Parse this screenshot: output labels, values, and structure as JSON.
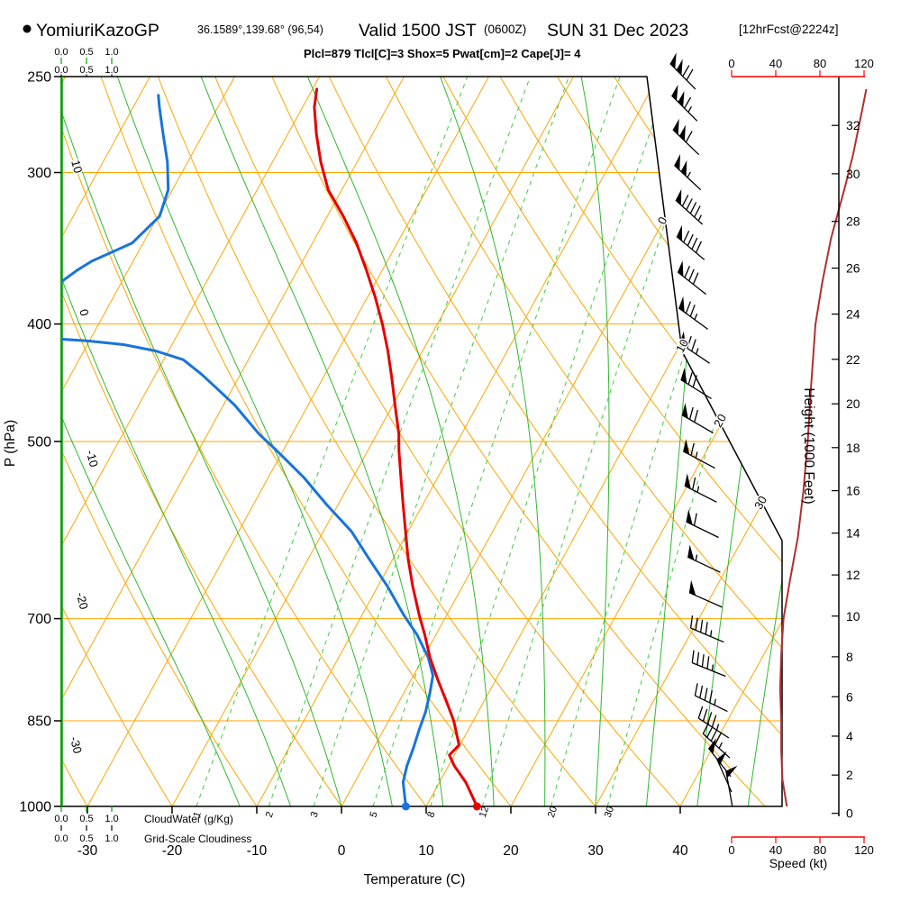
{
  "header": {
    "station_marker": "●",
    "station": "YomiuriKazoGP",
    "coords": "36.1589°,139.68° (96,54)",
    "valid_time": "Valid 1500 JST",
    "valid_zulu": "(0600Z)",
    "valid_date": "SUN 31 Dec 2023",
    "forecast_tag": "[12hrFcst@2224z]",
    "params_line": "Plcl=879 Tlcl[C]=3 Shox=5 Pwat[cm]=2 Cape[J]= 4"
  },
  "axes": {
    "pressure_label": "P (hPa)",
    "pressure_ticks": [
      250,
      300,
      400,
      500,
      700,
      850,
      1000
    ],
    "pressure_gridlines": [
      300,
      400,
      500,
      700,
      850
    ],
    "temperature_label": "Temperature (C)",
    "temperature_ticks": [
      -30,
      -20,
      -10,
      0,
      10,
      20,
      30,
      40
    ],
    "height_label": "Height (1000 Feet)",
    "height_ticks": [
      0,
      2,
      4,
      6,
      8,
      10,
      12,
      14,
      16,
      18,
      20,
      22,
      24,
      26,
      28,
      30,
      32
    ],
    "speed_label": "Speed (kt)",
    "speed_ticks": [
      0,
      40,
      80,
      120
    ],
    "cloud_scale_ticks": [
      "0.0",
      "0.5",
      "1.0"
    ],
    "cloudwater_label": "CloudWater (g/Kg)",
    "cloudiness_label": "Grid-Scale Cloudiness",
    "mixing_ratio_labels": [
      1,
      2,
      3,
      5,
      8,
      12,
      20,
      30
    ],
    "isotherm_inline_labels": [
      0,
      10,
      20,
      30
    ],
    "adiabat_inline_labels": [
      10,
      0,
      -10,
      -20,
      -30
    ]
  },
  "colors": {
    "orange_grid": "#FFA500",
    "moist_green": "#2EB82E",
    "mixing_green": "#3FCC3F",
    "cloudwater_green": "#00A600",
    "temperature_red": "#E60000",
    "dewpoint_blue": "#1874DC",
    "windspeed_dark_red": "#B03030",
    "speed_axis_red": "#FF0000",
    "params_magenta": "#C8006E",
    "fcst_blue": "#0000CD",
    "black": "#000000"
  },
  "chart_data": {
    "type": "line",
    "subtype": "skew-t log-p sounding",
    "pressure_range_hpa": [
      1000,
      250
    ],
    "temperature_range_c": [
      -30,
      40
    ],
    "temperature_profile_p_c": [
      [
        1000,
        16.0
      ],
      [
        955,
        13.1
      ],
      [
        926,
        10.7
      ],
      [
        907,
        9.4
      ],
      [
        890,
        9.9
      ],
      [
        850,
        7.7
      ],
      [
        821,
        5.7
      ],
      [
        787,
        3.2
      ],
      [
        754,
        0.8
      ],
      [
        722,
        -1.3
      ],
      [
        696,
        -3.2
      ],
      [
        658,
        -5.9
      ],
      [
        625,
        -8.2
      ],
      [
        593,
        -10.3
      ],
      [
        564,
        -12.3
      ],
      [
        536,
        -14.3
      ],
      [
        509,
        -16.3
      ],
      [
        493,
        -17.4
      ],
      [
        467,
        -19.7
      ],
      [
        443,
        -21.9
      ],
      [
        421,
        -24.1
      ],
      [
        400,
        -26.5
      ],
      [
        380,
        -29.1
      ],
      [
        361,
        -31.9
      ],
      [
        343,
        -34.8
      ],
      [
        326,
        -38.1
      ],
      [
        310,
        -41.6
      ],
      [
        294,
        -44.3
      ],
      [
        279,
        -46.6
      ],
      [
        265,
        -48.6
      ],
      [
        256,
        -49.5
      ]
    ],
    "dewpoint_profile_p_c": [
      [
        1000,
        7.6
      ],
      [
        955,
        5.7
      ],
      [
        926,
        5.1
      ],
      [
        895,
        4.7
      ],
      [
        865,
        4.2
      ],
      [
        836,
        3.8
      ],
      [
        807,
        3.1
      ],
      [
        780,
        2.3
      ],
      [
        754,
        0.6
      ],
      [
        722,
        -2.2
      ],
      [
        696,
        -5.0
      ],
      [
        658,
        -8.9
      ],
      [
        625,
        -12.8
      ],
      [
        593,
        -16.7
      ],
      [
        564,
        -21.3
      ],
      [
        536,
        -25.7
      ],
      [
        509,
        -30.7
      ],
      [
        493,
        -33.9
      ],
      [
        467,
        -38.6
      ],
      [
        451,
        -42.1
      ],
      [
        440,
        -44.6
      ],
      [
        428,
        -47.7
      ],
      [
        421,
        -51.5
      ],
      [
        416,
        -55.7
      ],
      [
        413,
        -60.3
      ],
      [
        411,
        -65.0
      ],
      [
        405,
        -70.0
      ],
      [
        395,
        -73.0
      ],
      [
        385,
        -73.0
      ],
      [
        375,
        -70.0
      ],
      [
        371,
        -67.4
      ],
      [
        361,
        -66.0
      ],
      [
        355,
        -64.9
      ],
      [
        343,
        -61.3
      ],
      [
        326,
        -59.8
      ],
      [
        310,
        -60.5
      ],
      [
        294,
        -62.4
      ],
      [
        279,
        -64.7
      ],
      [
        265,
        -66.9
      ],
      [
        259,
        -67.8
      ]
    ],
    "wind_speed_profile_p_kt": [
      [
        1000,
        50
      ],
      [
        950,
        46
      ],
      [
        900,
        45
      ],
      [
        850,
        45
      ],
      [
        800,
        44
      ],
      [
        750,
        45
      ],
      [
        700,
        47
      ],
      [
        650,
        53
      ],
      [
        600,
        60
      ],
      [
        550,
        65
      ],
      [
        500,
        69
      ],
      [
        450,
        72
      ],
      [
        400,
        76
      ],
      [
        370,
        82
      ],
      [
        340,
        90
      ],
      [
        310,
        102
      ],
      [
        290,
        110
      ],
      [
        270,
        117
      ],
      [
        256,
        122
      ]
    ],
    "wind_barbs_p_dir_kt": [
      [
        256,
        315,
        120
      ],
      [
        272,
        315,
        115
      ],
      [
        290,
        314,
        111
      ],
      [
        310,
        313,
        103
      ],
      [
        331,
        312,
        95
      ],
      [
        354,
        310,
        88
      ],
      [
        378,
        308,
        81
      ],
      [
        404,
        306,
        76
      ],
      [
        431,
        304,
        73
      ],
      [
        461,
        302,
        71
      ],
      [
        492,
        300,
        69
      ],
      [
        526,
        298,
        66
      ],
      [
        561,
        297,
        63
      ],
      [
        600,
        296,
        60
      ],
      [
        641,
        295,
        56
      ],
      [
        685,
        294,
        48
      ],
      [
        732,
        293,
        45
      ],
      [
        781,
        292,
        45
      ],
      [
        835,
        296,
        45
      ],
      [
        878,
        303,
        46
      ],
      [
        912,
        312,
        47
      ],
      [
        945,
        322,
        48
      ],
      [
        973,
        336,
        49
      ],
      [
        1000,
        350,
        50
      ]
    ],
    "cloud_water_profile_p_gkg": [
      [
        1000,
        0
      ],
      [
        250,
        0
      ]
    ],
    "cloudiness_profile_p_frac": [
      [
        1000,
        0
      ],
      [
        250,
        0
      ]
    ]
  }
}
